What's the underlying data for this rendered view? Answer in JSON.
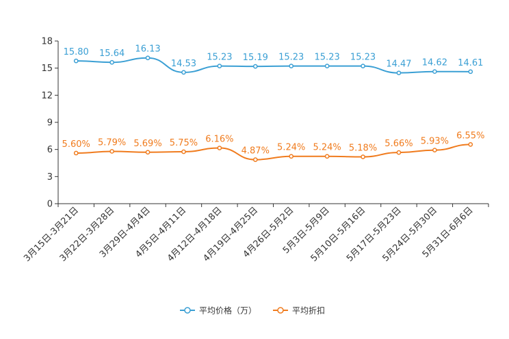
{
  "chart_data": {
    "type": "line",
    "categories": [
      "3月15日-3月21日",
      "3月22日-3月28日",
      "3月29日-4月4日",
      "4月5日-4月11日",
      "4月12日-4月18日",
      "4月19日-4月25日",
      "4月26日-5月2日",
      "5月3日-5月9日",
      "5月10日-5月16日",
      "5月17日-5月23日",
      "5月24日-5月30日",
      "5月31日-6月6日"
    ],
    "ylim": [
      0,
      18
    ],
    "yticks": [
      0,
      3,
      6,
      9,
      12,
      15,
      18
    ],
    "series": [
      {
        "name": "平均价格（万）",
        "color": "#3a9fd4",
        "values": [
          15.8,
          15.64,
          16.13,
          14.53,
          15.23,
          15.19,
          15.23,
          15.23,
          15.23,
          14.47,
          14.62,
          14.61
        ],
        "labels": [
          "15.80",
          "15.64",
          "16.13",
          "14.53",
          "15.23",
          "15.19",
          "15.23",
          "15.23",
          "15.23",
          "14.47",
          "14.62",
          "14.61"
        ]
      },
      {
        "name": "平均折扣",
        "color": "#f07b1d",
        "values": [
          5.6,
          5.79,
          5.69,
          5.75,
          6.16,
          4.87,
          5.24,
          5.24,
          5.18,
          5.66,
          5.93,
          6.55
        ],
        "labels": [
          "5.60%",
          "5.79%",
          "5.69%",
          "5.75%",
          "6.16%",
          "4.87%",
          "5.24%",
          "5.24%",
          "5.18%",
          "5.66%",
          "5.93%",
          "6.55%"
        ]
      }
    ],
    "legend_position": "bottom-center"
  }
}
